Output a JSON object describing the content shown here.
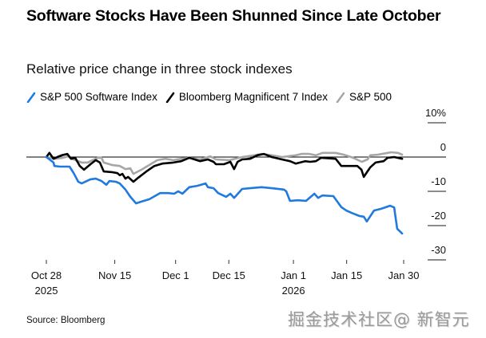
{
  "title": "Software Stocks Have Been Shunned Since Late October",
  "subtitle": "Relative price change in three stock indexes",
  "source": "Source: Bloomberg",
  "watermark": "掘金技术社区@ 新智元",
  "chart_data": {
    "type": "line",
    "title": "Software Stocks Have Been Shunned Since Late October",
    "subtitle": "Relative price change in three stock indexes",
    "xlabel": "",
    "ylabel": "",
    "x_unit": "days since Oct 28, 2025",
    "xlim": [
      0,
      94
    ],
    "ylim": [
      -30,
      10
    ],
    "yticks": [
      10,
      0,
      -10,
      -20,
      -30
    ],
    "ytick_labels": [
      "10%",
      "0",
      "-10",
      "-20",
      "-30"
    ],
    "xticks": [
      0,
      18,
      34,
      48,
      65,
      79,
      94
    ],
    "xtick_labels": [
      [
        "Oct 28",
        "2025"
      ],
      [
        "Nov 15",
        ""
      ],
      [
        "Dec 1",
        ""
      ],
      [
        "Dec 15",
        ""
      ],
      [
        "Jan 1",
        "2026"
      ],
      [
        "Jan 15",
        ""
      ],
      [
        "Jan 30",
        ""
      ]
    ],
    "zero_line": true,
    "grid": false,
    "legend_position": "top-left",
    "series": [
      {
        "name": "S&P 500 Software Index",
        "color": "#1f7ae0",
        "points": [
          [
            0,
            0
          ],
          [
            1.9,
            -1.6
          ],
          [
            2.1,
            -2.6
          ],
          [
            3.6,
            -2.8
          ],
          [
            6.1,
            -2.8
          ],
          [
            7.2,
            -4.7
          ],
          [
            8.4,
            -7.2
          ],
          [
            9.3,
            -7.7
          ],
          [
            11.6,
            -6.5
          ],
          [
            13.0,
            -6.3
          ],
          [
            14.5,
            -7.0
          ],
          [
            15.8,
            -8.1
          ],
          [
            16.6,
            -7.0
          ],
          [
            18.3,
            -7.2
          ],
          [
            19.3,
            -7.7
          ],
          [
            20.8,
            -9.5
          ],
          [
            22.1,
            -11.6
          ],
          [
            23.6,
            -13.5
          ],
          [
            25.0,
            -13.0
          ],
          [
            27.1,
            -12.3
          ],
          [
            29.9,
            -10.5
          ],
          [
            32.0,
            -10.5
          ],
          [
            33.6,
            -10.7
          ],
          [
            34.7,
            -10.0
          ],
          [
            35.8,
            -10.7
          ],
          [
            37.6,
            -8.8
          ],
          [
            39.7,
            -8.4
          ],
          [
            41.9,
            -7.7
          ],
          [
            42.5,
            -8.8
          ],
          [
            44.0,
            -9.1
          ],
          [
            45.2,
            -10.5
          ],
          [
            47.3,
            -11.6
          ],
          [
            48.4,
            -10.7
          ],
          [
            49.4,
            -11.9
          ],
          [
            51.5,
            -9.3
          ],
          [
            53.6,
            -9.1
          ],
          [
            56.6,
            -8.8
          ],
          [
            59.3,
            -9.1
          ],
          [
            62.5,
            -9.5
          ],
          [
            63.1,
            -10.0
          ],
          [
            64.1,
            -12.8
          ],
          [
            66.2,
            -12.6
          ],
          [
            68.3,
            -12.8
          ],
          [
            70.5,
            -10.7
          ],
          [
            71.5,
            -11.9
          ],
          [
            72.6,
            -11.2
          ],
          [
            75.5,
            -11.4
          ],
          [
            77.6,
            -14.6
          ],
          [
            78.9,
            -15.6
          ],
          [
            80.3,
            -16.3
          ],
          [
            82.4,
            -17.2
          ],
          [
            83.5,
            -17.4
          ],
          [
            84.3,
            -18.8
          ],
          [
            86.2,
            -15.6
          ],
          [
            88.1,
            -15.1
          ],
          [
            90.4,
            -14.2
          ],
          [
            91.5,
            -14.7
          ],
          [
            92.3,
            -20.9
          ],
          [
            93.6,
            -22.3
          ]
        ]
      },
      {
        "name": "Bloomberg Magnificent 7 Index",
        "color": "#000000",
        "points": [
          [
            0,
            0
          ],
          [
            0.8,
            1.2
          ],
          [
            1.9,
            -0.5
          ],
          [
            2.9,
            0
          ],
          [
            4.0,
            0.5
          ],
          [
            5.5,
            0.9
          ],
          [
            6.5,
            -0.5
          ],
          [
            7.6,
            -0.2
          ],
          [
            8.8,
            -2.6
          ],
          [
            9.9,
            -3.7
          ],
          [
            11.6,
            -2.1
          ],
          [
            13.0,
            -0.9
          ],
          [
            14.1,
            -1.6
          ],
          [
            15.1,
            -4.2
          ],
          [
            17.2,
            -4.4
          ],
          [
            18.7,
            -4.7
          ],
          [
            19.3,
            -5.3
          ],
          [
            20.0,
            -4.9
          ],
          [
            20.8,
            -6.3
          ],
          [
            21.5,
            -5.8
          ],
          [
            22.9,
            -7.2
          ],
          [
            24.2,
            -6.0
          ],
          [
            26.3,
            -4.2
          ],
          [
            28.4,
            -2.6
          ],
          [
            30.5,
            -1.9
          ],
          [
            33.4,
            -1.6
          ],
          [
            35.5,
            -1.2
          ],
          [
            37.6,
            -0.2
          ],
          [
            40.4,
            -1.2
          ],
          [
            42.5,
            -0.7
          ],
          [
            44.0,
            -1.4
          ],
          [
            44.6,
            -2.1
          ],
          [
            46.7,
            -2.1
          ],
          [
            48.4,
            -1.4
          ],
          [
            49.4,
            -3.5
          ],
          [
            50.3,
            -1.4
          ],
          [
            51.5,
            -0.7
          ],
          [
            53.6,
            -0.5
          ],
          [
            55.5,
            0.5
          ],
          [
            57.2,
            0.9
          ],
          [
            59.3,
            0
          ],
          [
            62.0,
            -0.7
          ],
          [
            64.1,
            -1.2
          ],
          [
            65.6,
            -1.9
          ],
          [
            68.1,
            -1.2
          ],
          [
            69.4,
            -1.4
          ],
          [
            70.9,
            -1.2
          ],
          [
            72.3,
            -0.2
          ],
          [
            76.1,
            -0.5
          ],
          [
            77.6,
            -2.6
          ],
          [
            79.7,
            -2.6
          ],
          [
            81.8,
            -2.6
          ],
          [
            82.9,
            -3.7
          ],
          [
            83.5,
            -5.8
          ],
          [
            85.2,
            -3.0
          ],
          [
            86.6,
            -1.6
          ],
          [
            88.7,
            -1.2
          ],
          [
            89.8,
            -0.2
          ],
          [
            91.5,
            0
          ],
          [
            93.6,
            -0.5
          ]
        ]
      },
      {
        "name": "S&P 500",
        "color": "#a6a6a6",
        "points": [
          [
            0,
            0
          ],
          [
            2.3,
            -0.5
          ],
          [
            4.4,
            -0.2
          ],
          [
            5.7,
            0.2
          ],
          [
            6.7,
            -0.5
          ],
          [
            9.3,
            -1.6
          ],
          [
            10.9,
            -1.6
          ],
          [
            11.6,
            -1.2
          ],
          [
            13.5,
            -0.2
          ],
          [
            14.5,
            -0.2
          ],
          [
            15.1,
            -1.6
          ],
          [
            17.2,
            -2.3
          ],
          [
            19.3,
            -2.6
          ],
          [
            20.8,
            -3.5
          ],
          [
            22.1,
            -3.3
          ],
          [
            22.9,
            -4.9
          ],
          [
            25.0,
            -3.7
          ],
          [
            27.1,
            -2.3
          ],
          [
            29.2,
            -0.9
          ],
          [
            31.3,
            -0.5
          ],
          [
            33.4,
            -0.9
          ],
          [
            35.5,
            -0.5
          ],
          [
            37.6,
            -0.2
          ],
          [
            40.4,
            -0.7
          ],
          [
            43.1,
            0.2
          ],
          [
            44.6,
            -0.7
          ],
          [
            48.2,
            -0.9
          ],
          [
            51.5,
            0
          ],
          [
            54.7,
            0.5
          ],
          [
            56.6,
            0.9
          ],
          [
            59.3,
            0.5
          ],
          [
            62.0,
            0
          ],
          [
            65.6,
            0.5
          ],
          [
            67.1,
            0.9
          ],
          [
            69.2,
            0.9
          ],
          [
            70.9,
            0.5
          ],
          [
            72.6,
            1.2
          ],
          [
            76.1,
            1.2
          ],
          [
            78.2,
            0.7
          ],
          [
            80.7,
            -0.2
          ],
          [
            83.0,
            -1.4
          ],
          [
            84.5,
            -0.7
          ],
          [
            85.2,
            0.5
          ],
          [
            87.2,
            0.7
          ],
          [
            89.8,
            1.2
          ],
          [
            90.8,
            1.4
          ],
          [
            92.5,
            1.2
          ],
          [
            93.6,
            0.7
          ]
        ]
      }
    ]
  }
}
